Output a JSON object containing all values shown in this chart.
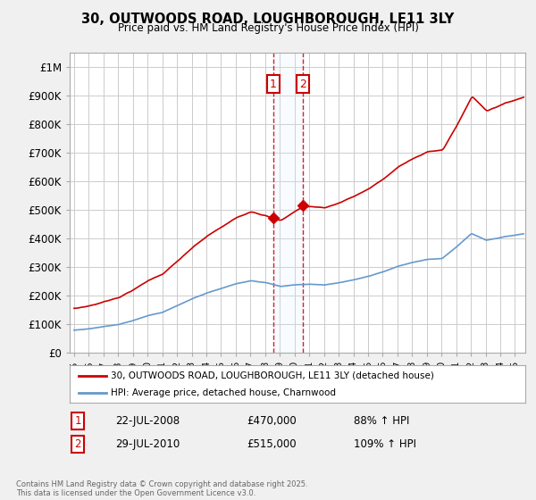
{
  "title": "30, OUTWOODS ROAD, LOUGHBOROUGH, LE11 3LY",
  "subtitle": "Price paid vs. HM Land Registry's House Price Index (HPI)",
  "ylabel_ticks": [
    "£0",
    "£100K",
    "£200K",
    "£300K",
    "£400K",
    "£500K",
    "£600K",
    "£700K",
    "£800K",
    "£900K",
    "£1M"
  ],
  "ytick_vals": [
    0,
    100000,
    200000,
    300000,
    400000,
    500000,
    600000,
    700000,
    800000,
    900000,
    1000000
  ],
  "ylim": [
    0,
    1050000
  ],
  "xlim_start": 1994.7,
  "xlim_end": 2025.7,
  "xtick_years": [
    1995,
    1996,
    1997,
    1998,
    1999,
    2000,
    2001,
    2002,
    2003,
    2004,
    2005,
    2006,
    2007,
    2008,
    2009,
    2010,
    2011,
    2012,
    2013,
    2014,
    2015,
    2016,
    2017,
    2018,
    2019,
    2020,
    2021,
    2022,
    2023,
    2024,
    2025
  ],
  "sale1_x": 2008.55,
  "sale1_y": 470000,
  "sale2_x": 2010.57,
  "sale2_y": 515000,
  "sale1_label": "1",
  "sale2_label": "2",
  "sale1_date": "22-JUL-2008",
  "sale1_price": "£470,000",
  "sale1_hpi": "88% ↑ HPI",
  "sale2_date": "29-JUL-2010",
  "sale2_price": "£515,000",
  "sale2_hpi": "109% ↑ HPI",
  "legend1": "30, OUTWOODS ROAD, LOUGHBOROUGH, LE11 3LY (detached house)",
  "legend2": "HPI: Average price, detached house, Charnwood",
  "footer": "Contains HM Land Registry data © Crown copyright and database right 2025.\nThis data is licensed under the Open Government Licence v3.0.",
  "line_color": "#cc0000",
  "hpi_color": "#6699cc",
  "bg_color": "#f0f0f0",
  "plot_bg": "#ffffff",
  "grid_color": "#cccccc",
  "shade_color": "#ddeeff"
}
